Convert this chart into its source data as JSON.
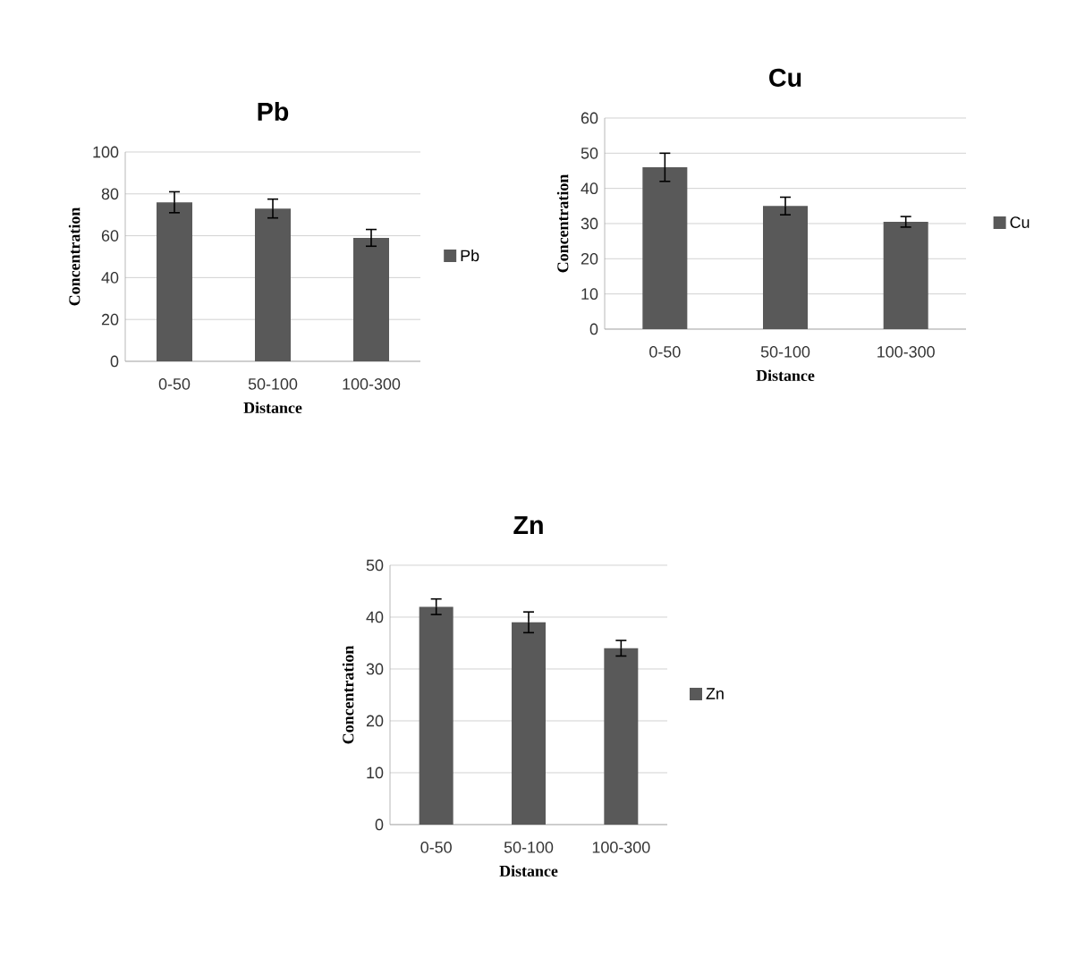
{
  "chart_data": [
    {
      "type": "bar",
      "title": "Pb",
      "xlabel": "Distance",
      "ylabel": "Concentration",
      "categories": [
        "0-50",
        "50-100",
        "100-300"
      ],
      "series": [
        {
          "name": "Pb",
          "color": "#595959",
          "values": [
            76,
            73,
            59
          ],
          "errors": [
            5,
            4.5,
            4
          ]
        }
      ],
      "ylim": [
        0,
        100
      ],
      "yticks": [
        0,
        20,
        40,
        60,
        80,
        100
      ],
      "grid": "y",
      "legend": "right"
    },
    {
      "type": "bar",
      "title": "Cu",
      "xlabel": "Distance",
      "ylabel": "Concentration",
      "categories": [
        "0-50",
        "50-100",
        "100-300"
      ],
      "series": [
        {
          "name": "Cu",
          "color": "#595959",
          "values": [
            46,
            35,
            30.5
          ],
          "errors": [
            4,
            2.5,
            1.5
          ]
        }
      ],
      "ylim": [
        0,
        60
      ],
      "yticks": [
        0,
        10,
        20,
        30,
        40,
        50,
        60
      ],
      "grid": "y",
      "legend": "right"
    },
    {
      "type": "bar",
      "title": "Zn",
      "xlabel": "Distance",
      "ylabel": "Concentration",
      "categories": [
        "0-50",
        "50-100",
        "100-300"
      ],
      "series": [
        {
          "name": "Zn",
          "color": "#595959",
          "values": [
            42,
            39,
            34
          ],
          "errors": [
            1.5,
            2,
            1.5
          ]
        }
      ],
      "ylim": [
        0,
        50
      ],
      "yticks": [
        0,
        10,
        20,
        30,
        40,
        50
      ],
      "grid": "y",
      "legend": "right"
    }
  ]
}
